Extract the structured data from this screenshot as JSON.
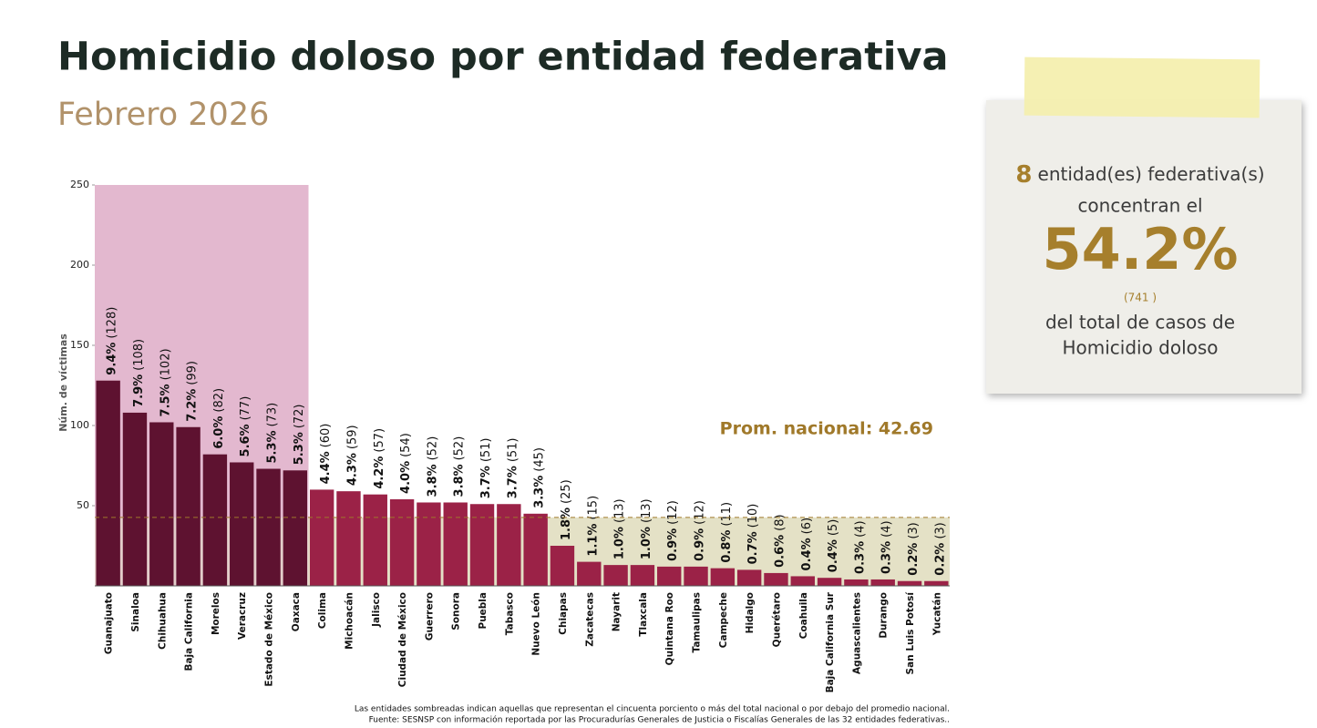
{
  "chart_data": {
    "type": "bar",
    "title": "Homicidio doloso por entidad federativa",
    "subtitle": "Febrero 2026",
    "y_label": "Núm. de víctimas",
    "categories": [
      "Guanajuato",
      "Sinaloa",
      "Chihuahua",
      "Baja California",
      "Morelos",
      "Veracruz",
      "Estado de México",
      "Oaxaca",
      "Colima",
      "Michoacán",
      "Jalisco",
      "Ciudad de México",
      "Guerrero",
      "Sonora",
      "Puebla",
      "Tabasco",
      "Nuevo León",
      "Chiapas",
      "Zacatecas",
      "Nayarit",
      "Tlaxcala",
      "Quintana Roo",
      "Tamaulipas",
      "Campeche",
      "Hidalgo",
      "Querétaro",
      "Coahuila",
      "Baja California Sur",
      "Aguascalientes",
      "Durango",
      "San Luis Potosí",
      "Yucatán"
    ],
    "values": [
      128,
      108,
      102,
      99,
      82,
      77,
      73,
      72,
      60,
      59,
      57,
      54,
      52,
      52,
      51,
      51,
      45,
      25,
      15,
      13,
      13,
      12,
      12,
      11,
      10,
      8,
      6,
      5,
      4,
      4,
      3,
      3
    ],
    "value_labels": [
      "(128)",
      "(108)",
      "(102)",
      "(99)",
      "(82)",
      "(77)",
      "(73)",
      "(72)",
      "(60)",
      "(59)",
      "(57)",
      "(54)",
      "(52)",
      "(52)",
      "(51)",
      "(51)",
      "(45)",
      "(25)",
      "(15)",
      "(13)",
      "(13)",
      "(12)",
      "(12)",
      "(11)",
      "(10)",
      "(8)",
      "(6)",
      "(5)",
      "(4)",
      "(4)",
      "(3)",
      "(3)"
    ],
    "share_labels": [
      "9.4%",
      "7.9%",
      "7.5%",
      "7.2%",
      "6.0%",
      "5.6%",
      "5.3%",
      "5.3%",
      "4.4%",
      "4.3%",
      "4.2%",
      "4.0%",
      "3.8%",
      "3.8%",
      "3.7%",
      "3.7%",
      "3.3%",
      "1.8%",
      "1.1%",
      "1.0%",
      "1.0%",
      "0.9%",
      "0.9%",
      "0.8%",
      "0.7%",
      "0.6%",
      "0.4%",
      "0.4%",
      "0.3%",
      "0.3%",
      "0.2%",
      "0.2%"
    ],
    "colors": {
      "highlight": "#5e1230",
      "normal": "#9b2247",
      "highlight_area": "#e3b8cf",
      "below_average_area": "#e4e1c6",
      "average": "#a0792a"
    },
    "ylim": [
      0,
      250
    ],
    "yticks": [
      50,
      100,
      150,
      200,
      250
    ],
    "average": {
      "value": 42.69,
      "label": "Prom. nacional: 42.69"
    },
    "notes": [
      "Las entidades sombreadas indican aquellas que representan el cincuenta porciento o más del total nacional o por debajo del promedio nacional.",
      "Fuente: SESNSP con información reportada por las Procuradurías Generales de Justicia o Fiscalías Generales de las 32 entidades federativas.."
    ]
  },
  "card": {
    "count": 8,
    "line1": "entidad(es) federativa(s)",
    "line2": "concentran el",
    "share": "54.2%",
    "total": "(741 )",
    "line3": "del total de casos de",
    "line4": "Homicidio doloso"
  }
}
